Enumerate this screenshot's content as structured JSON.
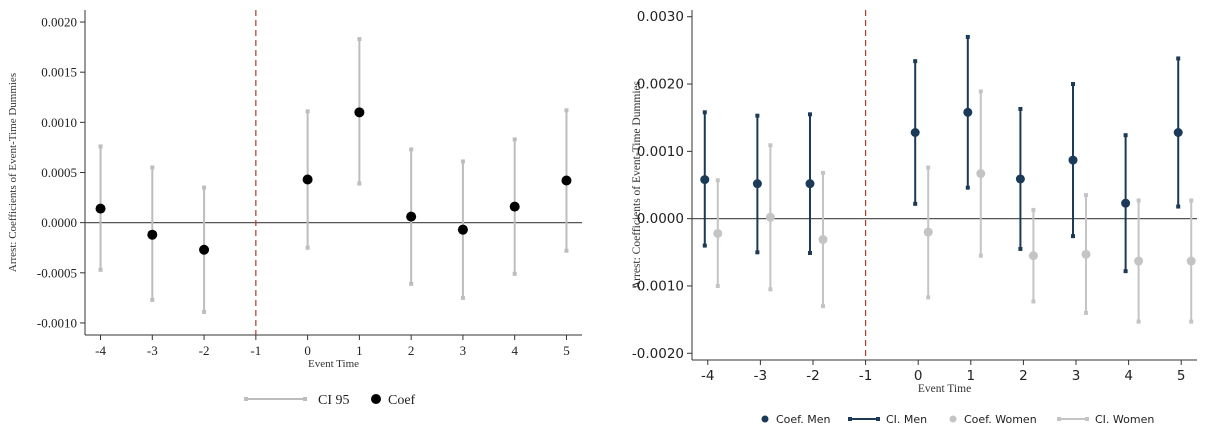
{
  "colors": {
    "ci_gray": "#bdbdbd",
    "coef_black": "#000000",
    "men_navy": "#1b3a57",
    "women_gray": "#c4c4c4",
    "zero_line": "#555555",
    "ref_line": "#b03a2e"
  },
  "chart_data": [
    {
      "type": "scatter",
      "subtype": "coefficient-plot-with-error-bars",
      "xlabel": "Event Time",
      "ylabel": "Arrest: Coefficients of Event-Time Dummies",
      "x": [
        -4,
        -3,
        -2,
        -1,
        0,
        1,
        2,
        3,
        4,
        5
      ],
      "xtick_labels": [
        "-4",
        "-3",
        "-2",
        "-1",
        "0",
        "1",
        "2",
        "3",
        "4",
        "5"
      ],
      "ylim": [
        -0.00112,
        0.00212
      ],
      "yticks": [
        -0.001,
        -0.0005,
        0.0,
        0.0005,
        0.001,
        0.0015,
        0.002
      ],
      "ytick_labels": [
        "-0.0010",
        "-0.0005",
        "0.0000",
        "0.0005",
        "0.0010",
        "0.0015",
        "0.0020"
      ],
      "reference_line_x": -1,
      "zero_line_y": 0,
      "legend": {
        "position": "bottom",
        "items": [
          "CI 95",
          "Coef"
        ]
      },
      "series": [
        {
          "name": "Coef",
          "x": [
            -4,
            -3,
            -2,
            0,
            1,
            2,
            3,
            4,
            5
          ],
          "coef": [
            0.00014,
            -0.00012,
            -0.00027,
            0.00043,
            0.0011,
            6e-05,
            -7e-05,
            0.00016,
            0.00042
          ],
          "ci_low": [
            -0.00047,
            -0.00077,
            -0.00089,
            -0.00025,
            0.00039,
            -0.00061,
            -0.00075,
            -0.00051,
            -0.00028
          ],
          "ci_high": [
            0.00076,
            0.00055,
            0.00035,
            0.00111,
            0.00183,
            0.00073,
            0.00061,
            0.00083,
            0.00112
          ]
        }
      ]
    },
    {
      "type": "scatter",
      "subtype": "coefficient-plot-with-error-bars",
      "xlabel": "Event Time",
      "ylabel": "Arrest: Coefficients of Event-Time Dummies",
      "x": [
        -4,
        -3,
        -2,
        -1,
        0,
        1,
        2,
        3,
        4,
        5
      ],
      "xtick_labels": [
        "-4",
        "-3",
        "-2",
        "-1",
        "0",
        "1",
        "2",
        "3",
        "4",
        "5"
      ],
      "ylim": [
        -0.0021,
        0.0031
      ],
      "yticks": [
        -0.002,
        -0.001,
        0.0,
        0.001,
        0.002,
        0.003
      ],
      "ytick_labels": [
        "-0.0020",
        "-0.0010",
        "0.0000",
        "0.0010",
        "0.0020",
        "0.0030"
      ],
      "reference_line_x": -1,
      "zero_line_y": 0,
      "legend": {
        "position": "bottom",
        "items": [
          "Coef. Men",
          "CI. Men",
          "Coef. Women",
          "CI. Women"
        ]
      },
      "series": [
        {
          "name": "Men",
          "x": [
            -4,
            -3,
            -2,
            0,
            1,
            2,
            3,
            4,
            5
          ],
          "coef": [
            0.00058,
            0.00052,
            0.00052,
            0.00128,
            0.00158,
            0.00059,
            0.00087,
            0.00023,
            0.00128
          ],
          "ci_low": [
            -0.0004,
            -0.0005,
            -0.00051,
            0.00022,
            0.00046,
            -0.00045,
            -0.00026,
            -0.00078,
            0.00018
          ],
          "ci_high": [
            0.00158,
            0.00153,
            0.00155,
            0.00234,
            0.0027,
            0.00163,
            0.002,
            0.00124,
            0.00238
          ]
        },
        {
          "name": "Women",
          "x": [
            -4,
            -3,
            -2,
            0,
            1,
            2,
            3,
            4,
            5
          ],
          "coef": [
            -0.00022,
            2e-05,
            -0.00031,
            -0.0002,
            0.00067,
            -0.00055,
            -0.00053,
            -0.00063,
            -0.00063
          ],
          "ci_low": [
            -0.001,
            -0.00105,
            -0.0013,
            -0.00117,
            -0.00055,
            -0.00123,
            -0.0014,
            -0.00153,
            -0.00153
          ],
          "ci_high": [
            0.00057,
            0.00109,
            0.00068,
            0.00076,
            0.00189,
            0.00013,
            0.00035,
            0.00027,
            0.00027
          ]
        }
      ]
    }
  ]
}
